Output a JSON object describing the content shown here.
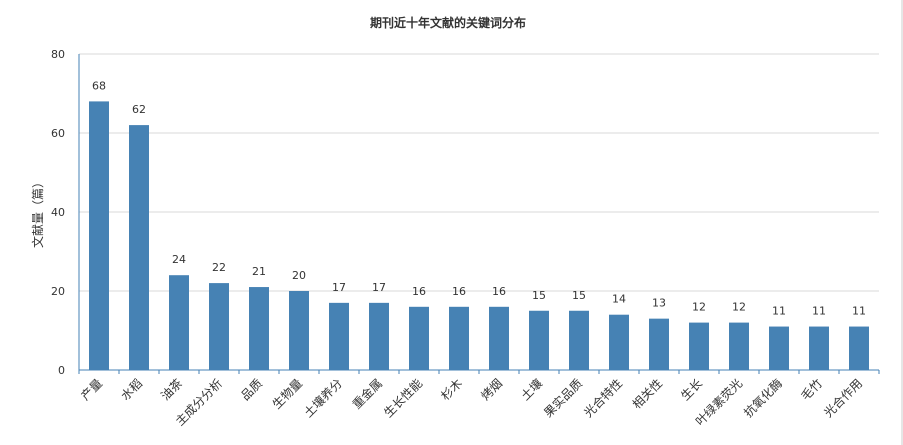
{
  "chart_data": {
    "type": "bar",
    "title": "期刊近十年文献的关键词分布",
    "xlabel": "",
    "ylabel": "文献量（篇）",
    "ylim": [
      0,
      80
    ],
    "yticks": [
      0,
      20,
      40,
      60,
      80
    ],
    "grid": true,
    "legend": "none",
    "bar_color": "#4682b4",
    "categories": [
      "产量",
      "水稻",
      "油茶",
      "主成分分析",
      "品质",
      "生物量",
      "土壤养分",
      "重金属",
      "生长性能",
      "杉木",
      "烤烟",
      "土壤",
      "果实品质",
      "光合特性",
      "相关性",
      "生长",
      "叶绿素荧光",
      "抗氧化酶",
      "毛竹",
      "光合作用"
    ],
    "values": [
      68,
      62,
      24,
      22,
      21,
      20,
      17,
      17,
      16,
      16,
      16,
      15,
      15,
      14,
      13,
      12,
      12,
      11,
      11,
      11
    ]
  }
}
